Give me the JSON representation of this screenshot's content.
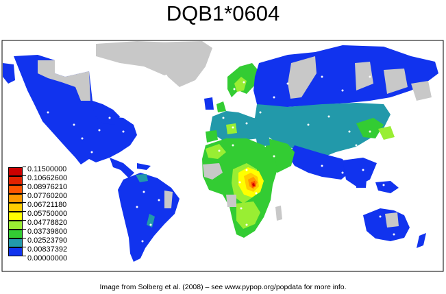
{
  "title": "DQB1*0604",
  "caption": "Image from Solberg et al. (2008) – see www.pypop.org/popdata for more info.",
  "legend": {
    "items": [
      {
        "label": "0.11500000",
        "color": "#cc0000"
      },
      {
        "label": "0.10662600",
        "color": "#e32200"
      },
      {
        "label": "0.08976210",
        "color": "#ff5500"
      },
      {
        "label": "0.07760200",
        "color": "#ff9900"
      },
      {
        "label": "0.06721180",
        "color": "#ffcc00"
      },
      {
        "label": "0.05750000",
        "color": "#ffff00"
      },
      {
        "label": "0.04778820",
        "color": "#99ee33"
      },
      {
        "label": "0.03739800",
        "color": "#33cc33"
      },
      {
        "label": "0.02523790",
        "color": "#2299aa"
      },
      {
        "label": "0.00837392",
        "color": "#1133ee"
      },
      {
        "label": "0.00000000",
        "color": ""
      }
    ]
  },
  "colors": {
    "no_data": "#c8c8c8",
    "ocean": "#ffffff",
    "sample_point": "#ffffff"
  }
}
